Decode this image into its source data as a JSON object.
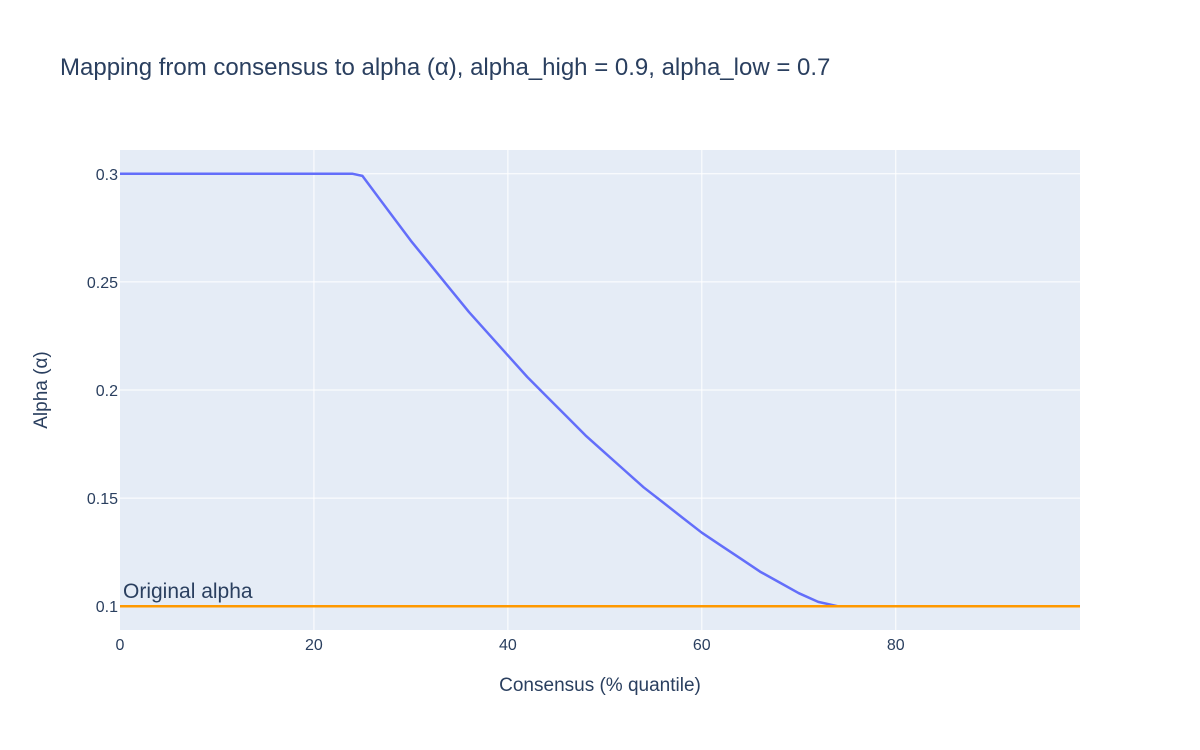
{
  "chart_data": {
    "type": "line",
    "title": "Mapping from consensus to alpha (α), alpha_high = 0.9, alpha_low = 0.7",
    "xlabel": "Consensus (% quantile)",
    "ylabel": "Alpha (α)",
    "xlim": [
      0,
      99
    ],
    "ylim": [
      0.089,
      0.311
    ],
    "xticks": [
      0,
      20,
      40,
      60,
      80
    ],
    "xtick_labels": [
      "0",
      "20",
      "40",
      "60",
      "80"
    ],
    "yticks": [
      0.1,
      0.15,
      0.2,
      0.25,
      0.3
    ],
    "ytick_labels": [
      "0.1",
      "0.15",
      "0.2",
      "0.25",
      "0.3"
    ],
    "grid": true,
    "colors": {
      "plot_bg": "#e5ecf6",
      "grid": "#ffffff",
      "text": "#2a3f5f"
    },
    "series": [
      {
        "color": "#636efa",
        "x": [
          0,
          24,
          25,
          26,
          28,
          30,
          32,
          34,
          36,
          38,
          40,
          42,
          44,
          46,
          48,
          50,
          52,
          54,
          56,
          58,
          60,
          62,
          64,
          66,
          68,
          70,
          72,
          74,
          75,
          99
        ],
        "y": [
          0.3,
          0.3,
          0.299,
          0.293,
          0.281,
          0.269,
          0.258,
          0.247,
          0.236,
          0.226,
          0.216,
          0.206,
          0.197,
          0.188,
          0.179,
          0.171,
          0.163,
          0.155,
          0.148,
          0.141,
          0.134,
          0.128,
          0.122,
          0.116,
          0.111,
          0.106,
          0.102,
          0.1,
          0.1,
          0.1
        ]
      },
      {
        "color": "#ff9900",
        "x": [
          0,
          99
        ],
        "y": [
          0.1,
          0.1
        ]
      }
    ],
    "annotations": [
      {
        "text": "Original alpha",
        "x": 0,
        "y": 0.1
      }
    ]
  }
}
